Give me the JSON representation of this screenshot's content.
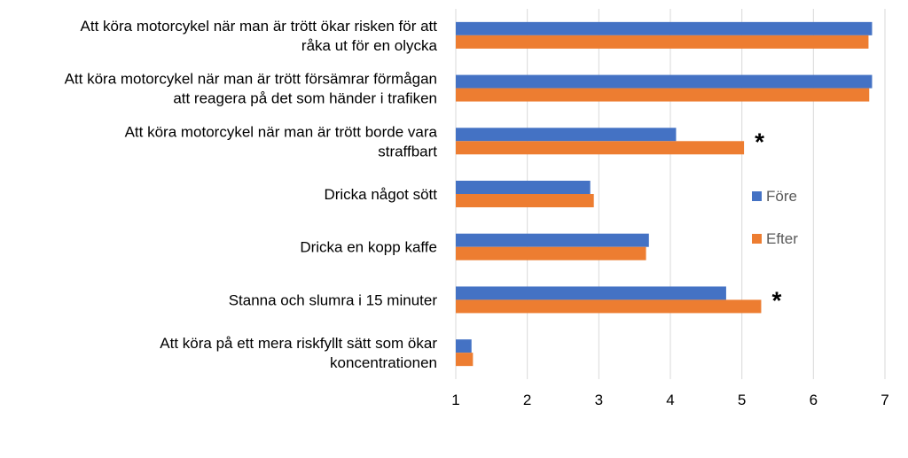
{
  "chart_data": {
    "type": "bar",
    "orientation": "horizontal",
    "categories": [
      [
        "Att köra motorcykel när man är trött ökar risken för att",
        "råka ut för en olycka"
      ],
      [
        "Att köra motorcykel när man är trött försämrar förmågan",
        "att reagera på det som händer i trafiken"
      ],
      [
        "Att köra motorcykel när man är trött borde vara",
        "straffbart"
      ],
      [
        "Dricka något sött"
      ],
      [
        "Dricka en kopp kaffe"
      ],
      [
        "Stanna och slumra i 15 minuter"
      ],
      [
        "Att köra på ett mera riskfyllt sätt som ökar",
        "koncentrationen"
      ]
    ],
    "series": [
      {
        "name": "Före",
        "color": "#4472c4",
        "values": [
          6.82,
          6.82,
          4.08,
          2.88,
          3.7,
          4.78,
          1.22
        ]
      },
      {
        "name": "Efter",
        "color": "#ed7d31",
        "values": [
          6.77,
          6.78,
          5.03,
          2.93,
          3.66,
          5.27,
          1.24
        ]
      }
    ],
    "annotations": [
      {
        "category_index": 2,
        "text": "*"
      },
      {
        "category_index": 5,
        "text": "*"
      }
    ],
    "xlim": [
      1,
      7
    ],
    "xticks": [
      "1",
      "2",
      "3",
      "4",
      "5",
      "6",
      "7"
    ],
    "grid": true,
    "legend_position": "right"
  }
}
